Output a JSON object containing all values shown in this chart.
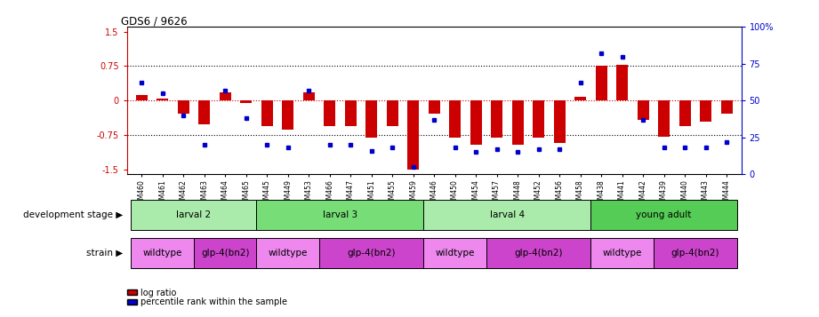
{
  "title": "GDS6 / 9626",
  "samples": [
    "GSM460",
    "GSM461",
    "GSM462",
    "GSM463",
    "GSM464",
    "GSM465",
    "GSM445",
    "GSM449",
    "GSM453",
    "GSM466",
    "GSM447",
    "GSM451",
    "GSM455",
    "GSM459",
    "GSM446",
    "GSM450",
    "GSM454",
    "GSM457",
    "GSM448",
    "GSM452",
    "GSM456",
    "GSM458",
    "GSM438",
    "GSM441",
    "GSM442",
    "GSM439",
    "GSM440",
    "GSM443",
    "GSM444"
  ],
  "log_ratio": [
    0.12,
    0.05,
    -0.28,
    -0.52,
    0.18,
    -0.05,
    -0.55,
    -0.62,
    0.18,
    -0.55,
    -0.55,
    -0.8,
    -0.55,
    -1.5,
    -0.28,
    -0.8,
    -0.95,
    -0.8,
    -0.95,
    -0.8,
    -0.92,
    0.08,
    0.75,
    0.78,
    -0.42,
    -0.78,
    -0.55,
    -0.45,
    -0.28
  ],
  "percentile": [
    62,
    55,
    40,
    20,
    57,
    38,
    20,
    18,
    57,
    20,
    20,
    16,
    18,
    5,
    37,
    18,
    15,
    17,
    15,
    17,
    17,
    62,
    82,
    80,
    37,
    18,
    18,
    18,
    22
  ],
  "dev_stages": [
    {
      "label": "larval 2",
      "start": 0,
      "end": 6,
      "color": "#aaeaaa"
    },
    {
      "label": "larval 3",
      "start": 6,
      "end": 14,
      "color": "#77dd77"
    },
    {
      "label": "larval 4",
      "start": 14,
      "end": 22,
      "color": "#aaeaaa"
    },
    {
      "label": "young adult",
      "start": 22,
      "end": 29,
      "color": "#55cc55"
    }
  ],
  "strains": [
    {
      "label": "wildtype",
      "start": 0,
      "end": 3,
      "color": "#ee88ee"
    },
    {
      "label": "glp-4(bn2)",
      "start": 3,
      "end": 6,
      "color": "#cc44cc"
    },
    {
      "label": "wildtype",
      "start": 6,
      "end": 9,
      "color": "#ee88ee"
    },
    {
      "label": "glp-4(bn2)",
      "start": 9,
      "end": 14,
      "color": "#cc44cc"
    },
    {
      "label": "wildtype",
      "start": 14,
      "end": 17,
      "color": "#ee88ee"
    },
    {
      "label": "glp-4(bn2)",
      "start": 17,
      "end": 22,
      "color": "#cc44cc"
    },
    {
      "label": "wildtype",
      "start": 22,
      "end": 25,
      "color": "#ee88ee"
    },
    {
      "label": "glp-4(bn2)",
      "start": 25,
      "end": 29,
      "color": "#cc44cc"
    }
  ],
  "ylim": [
    -1.6,
    1.6
  ],
  "y2lim": [
    0,
    100
  ],
  "bar_color": "#cc0000",
  "dot_color": "#0000cc",
  "zero_line_color": "#cc0000",
  "yticks_left": [
    -1.5,
    -0.75,
    0,
    0.75,
    1.5
  ],
  "yticks_right": [
    0,
    25,
    50,
    75,
    100
  ],
  "hlines": [
    0.75,
    -0.75
  ],
  "hline_zero": 0
}
